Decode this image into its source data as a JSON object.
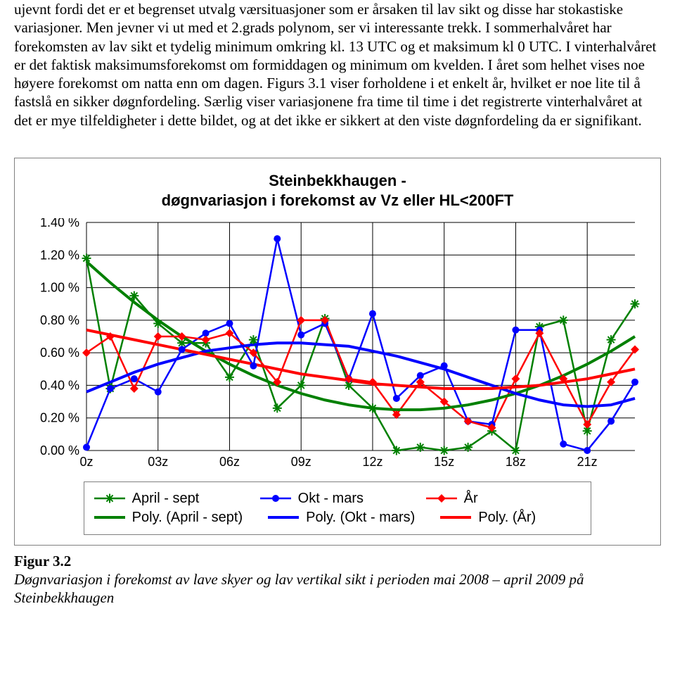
{
  "text": {
    "para": "ujevnt fordi det er et begrenset utvalg værsituasjoner som er årsaken til lav sikt og disse har stokastiske variasjoner. Men jevner vi ut med et 2.grads polynom, ser vi interessante trekk. I sommerhalvåret har forekomsten av lav sikt et tydelig minimum omkring kl. 13 UTC og et maksimum kl 0 UTC. I vinterhalvåret er det faktisk maksimumsforekomst om formiddagen og minimum om kvelden. I året som helhet vises noe høyere forekomst om natta enn om dagen. Figurs 3.1 viser forholdene i et enkelt år, hvilket er noe lite til å fastslå en sikker døgnfordeling. Særlig viser variasjonene fra time til time i det registrerte vinterhalvåret at det er mye tilfeldigheter i dette bildet, og at det ikke er sikkert at den viste døgnfordeling da er signifikant.",
    "fig_label": "Figur 3.2",
    "fig_caption": "Døgnvariasjon i forekomst av lave skyer og lav vertikal sikt i perioden mai 2008 – april 2009 på Steinbekkhaugen"
  },
  "chart": {
    "type": "line",
    "title_l1": "Steinbekkhaugen -",
    "title_l2": "døgnvariasjon i forekomst av Vz eller HL<200FT",
    "ylim": [
      0.0,
      1.4
    ],
    "ytick_step": 0.2,
    "ytick_labels": [
      "0.00 %",
      "0.20 %",
      "0.40 %",
      "0.60 %",
      "0.80 %",
      "1.00 %",
      "1.20 %",
      "1.40 %"
    ],
    "x_categories": [
      "0z",
      "03z",
      "06z",
      "09z",
      "12z",
      "15z",
      "18z",
      "21z"
    ],
    "grid_color": "#000000",
    "background_color": "#ffffff",
    "series": {
      "april_sept": {
        "label": "April - sept",
        "color": "#008000",
        "marker": "asterisk",
        "values": [
          1.18,
          0.38,
          0.95,
          0.78,
          0.66,
          0.66,
          0.45,
          0.68,
          0.26,
          0.4,
          0.81,
          0.4,
          0.26,
          0.0,
          0.02,
          0.0,
          0.02,
          0.12,
          0.0,
          0.76,
          0.8,
          0.12,
          0.68,
          0.9
        ]
      },
      "okt_mars": {
        "label": "Okt - mars",
        "color": "#0000ff",
        "marker": "circle",
        "values": [
          0.02,
          0.38,
          0.44,
          0.36,
          0.62,
          0.72,
          0.78,
          0.52,
          1.3,
          0.71,
          0.78,
          0.44,
          0.84,
          0.32,
          0.46,
          0.52,
          0.18,
          0.16,
          0.74,
          0.74,
          0.04,
          0.0,
          0.18,
          0.42
        ]
      },
      "aar": {
        "label": "År",
        "color": "#ff0000",
        "marker": "diamond",
        "values": [
          0.6,
          0.7,
          0.38,
          0.7,
          0.7,
          0.68,
          0.72,
          0.6,
          0.42,
          0.8,
          0.8,
          0.44,
          0.42,
          0.22,
          0.42,
          0.3,
          0.18,
          0.14,
          0.44,
          0.72,
          0.44,
          0.16,
          0.42,
          0.62
        ]
      }
    },
    "poly": {
      "april_sept": {
        "label": "Poly. (April - sept)",
        "color": "#008000",
        "width": 4,
        "values": [
          1.16,
          1.03,
          0.91,
          0.8,
          0.7,
          0.61,
          0.53,
          0.46,
          0.4,
          0.35,
          0.31,
          0.28,
          0.26,
          0.25,
          0.25,
          0.26,
          0.28,
          0.31,
          0.35,
          0.4,
          0.46,
          0.53,
          0.61,
          0.7
        ]
      },
      "okt_mars": {
        "label": "Poly. (Okt - mars)",
        "color": "#0000ff",
        "width": 4,
        "values": [
          0.36,
          0.42,
          0.48,
          0.53,
          0.57,
          0.61,
          0.63,
          0.65,
          0.66,
          0.66,
          0.65,
          0.64,
          0.61,
          0.58,
          0.54,
          0.5,
          0.45,
          0.4,
          0.35,
          0.31,
          0.28,
          0.27,
          0.28,
          0.32
        ]
      },
      "aar": {
        "label": "Poly. (År)",
        "color": "#ff0000",
        "width": 4,
        "values": [
          0.74,
          0.71,
          0.68,
          0.65,
          0.62,
          0.59,
          0.56,
          0.53,
          0.5,
          0.47,
          0.45,
          0.43,
          0.41,
          0.4,
          0.39,
          0.38,
          0.38,
          0.38,
          0.39,
          0.4,
          0.42,
          0.44,
          0.47,
          0.5
        ]
      }
    },
    "legend_order": [
      "april_sept",
      "okt_mars",
      "aar"
    ]
  },
  "style": {
    "marker_size": 5,
    "line_width": 2.5,
    "poly_width": 4,
    "font_family_chart": "Arial",
    "title_fontsize": 22,
    "tick_fontsize": 18,
    "legend_fontsize": 20
  }
}
